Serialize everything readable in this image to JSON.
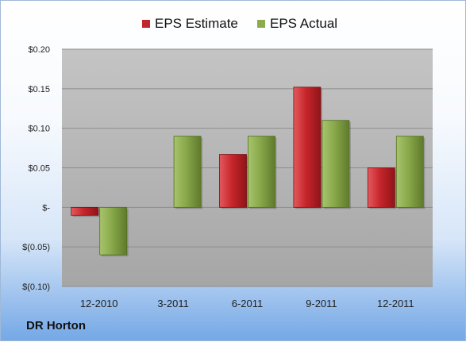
{
  "chart_data": {
    "type": "bar",
    "categories": [
      "12-2010",
      "3-2011",
      "6-2011",
      "9-2011",
      "12-2011"
    ],
    "series": [
      {
        "name": "EPS Estimate",
        "color": "#c0282d",
        "values": [
          -0.01,
          null,
          0.067,
          0.152,
          0.05
        ]
      },
      {
        "name": "EPS Actual",
        "color": "#8bab4c",
        "values": [
          -0.06,
          0.09,
          0.09,
          0.11,
          0.09
        ]
      }
    ],
    "ylim": [
      -0.1,
      0.2
    ],
    "yticks": [
      0.2,
      0.15,
      0.1,
      0.05,
      0.0,
      -0.05,
      -0.1
    ],
    "ytick_labels": [
      "$0.20",
      "$0.15",
      "$0.10",
      "$0.05",
      "$-",
      "$(0.05)",
      "$(0.10)"
    ],
    "grid": true,
    "legend_position": "top-center"
  },
  "footer": {
    "company": "DR Horton"
  }
}
